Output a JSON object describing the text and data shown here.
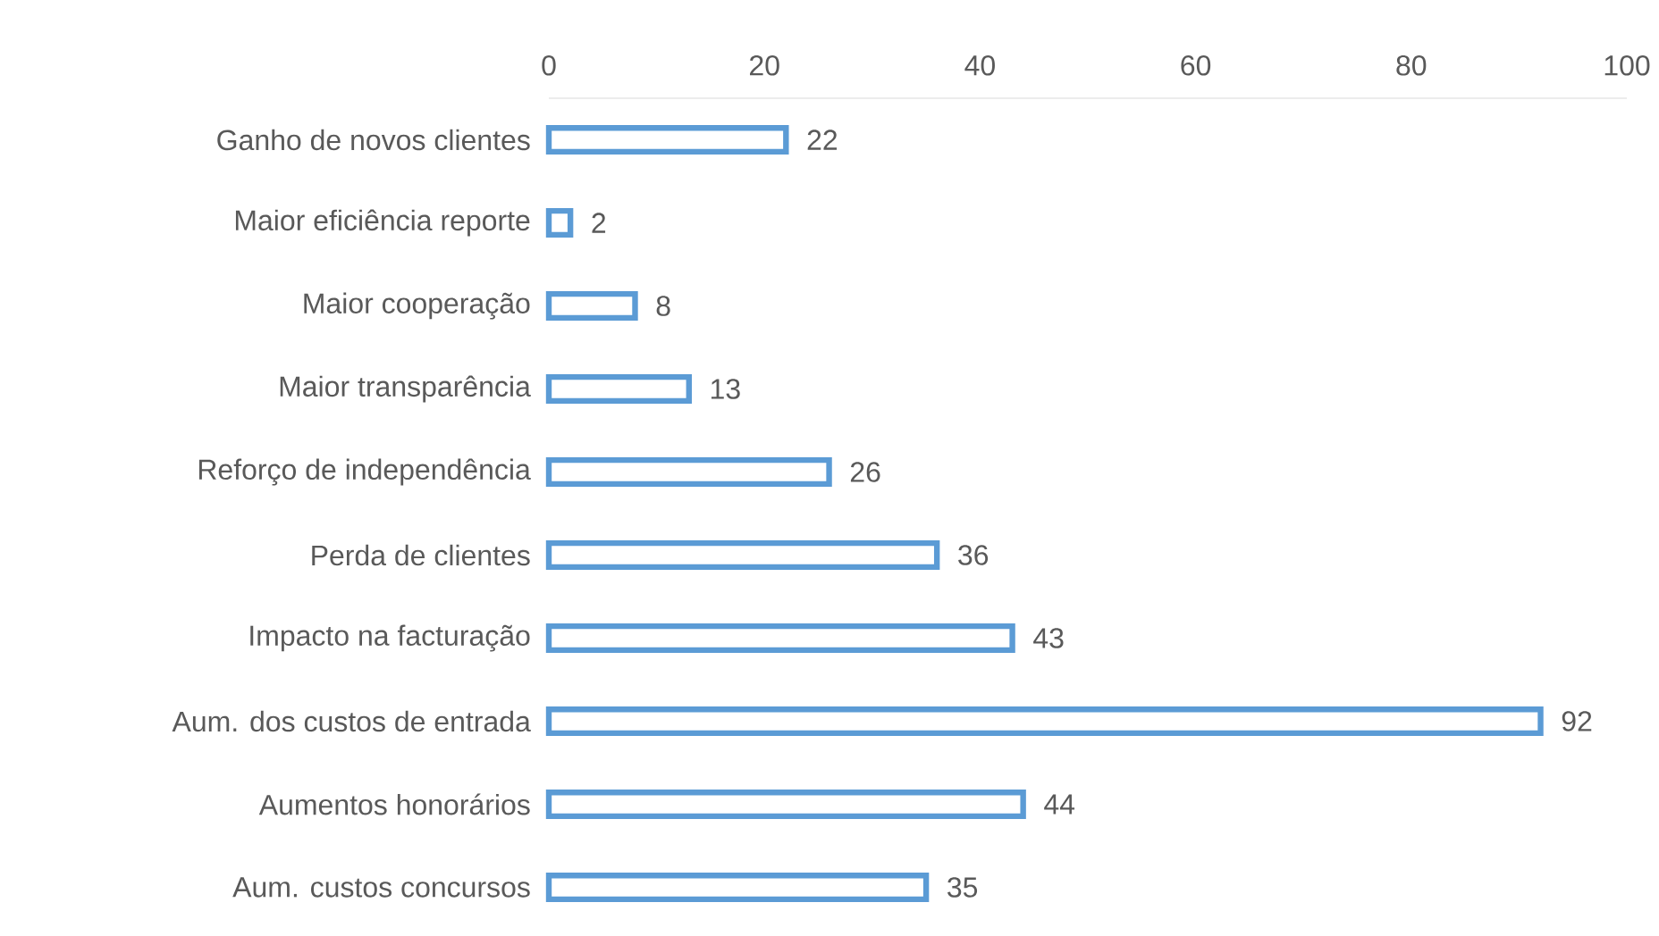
{
  "chart_data": {
    "type": "bar",
    "orientation": "horizontal",
    "categories": [
      "Ganho de novos clientes",
      "Maior eficiência reporte",
      "Maior cooperação",
      "Maior transparência",
      "Reforço de independência",
      "Perda de clientes",
      "Impacto na facturação",
      "Aum. dos custos de entrada",
      "Aumentos honorários",
      "Aum. custos concursos"
    ],
    "values": [
      22,
      2,
      8,
      13,
      26,
      36,
      43,
      92,
      44,
      35
    ],
    "color": "#5b9bd5",
    "xlim": [
      0,
      100
    ],
    "xticks": [
      0,
      20,
      40,
      60,
      80,
      100
    ],
    "data_labels": true
  }
}
